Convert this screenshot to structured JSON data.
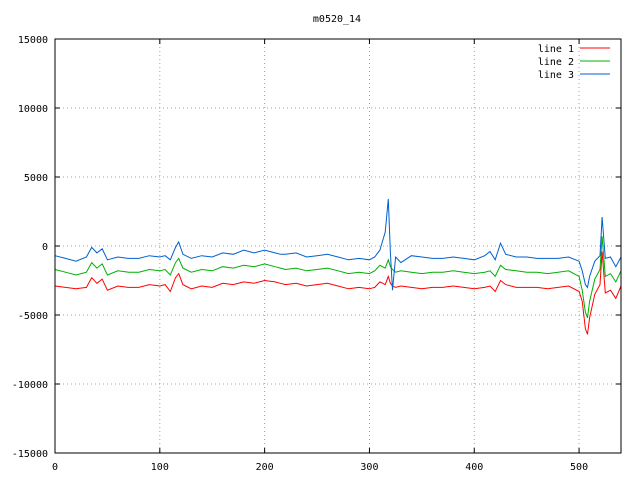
{
  "chart_data": {
    "type": "line",
    "title": "m0520_14",
    "xlabel": "",
    "ylabel": "",
    "xlim": [
      0,
      540
    ],
    "ylim": [
      -15000,
      15000
    ],
    "xticks": [
      "0",
      "100",
      "200",
      "300",
      "400",
      "500"
    ],
    "xtick_values": [
      0,
      100,
      200,
      300,
      400,
      500
    ],
    "yticks": [
      "-15000",
      "-10000",
      "-5000",
      "0",
      "5000",
      "10000",
      "15000"
    ],
    "ytick_values": [
      -15000,
      -10000,
      -5000,
      0,
      5000,
      10000,
      15000
    ],
    "grid": true,
    "legend_position": "top-right",
    "x": [
      0,
      10,
      20,
      30,
      35,
      40,
      45,
      50,
      60,
      70,
      80,
      90,
      100,
      105,
      110,
      115,
      118,
      122,
      130,
      140,
      150,
      160,
      170,
      180,
      190,
      200,
      210,
      215,
      220,
      230,
      240,
      250,
      260,
      270,
      280,
      290,
      300,
      305,
      310,
      315,
      318,
      320,
      322,
      325,
      330,
      340,
      350,
      360,
      370,
      380,
      390,
      400,
      410,
      415,
      420,
      425,
      430,
      440,
      450,
      460,
      470,
      480,
      490,
      500,
      503,
      506,
      508,
      510,
      515,
      520,
      522,
      525,
      530,
      535,
      540
    ],
    "series": [
      {
        "name": "line 1",
        "color": "#ff0000",
        "values": [
          -2900,
          -3000,
          -3100,
          -3000,
          -2300,
          -2700,
          -2400,
          -3200,
          -2900,
          -3000,
          -3000,
          -2800,
          -2900,
          -2800,
          -3300,
          -2300,
          -2000,
          -2800,
          -3100,
          -2900,
          -3000,
          -2700,
          -2800,
          -2600,
          -2700,
          -2500,
          -2600,
          -2700,
          -2800,
          -2700,
          -2900,
          -2800,
          -2700,
          -2900,
          -3100,
          -3000,
          -3100,
          -3000,
          -2600,
          -2800,
          -2200,
          -2700,
          -2900,
          -3000,
          -2900,
          -3000,
          -3100,
          -3000,
          -3000,
          -2900,
          -3000,
          -3100,
          -3000,
          -2900,
          -3300,
          -2500,
          -2800,
          -3000,
          -3000,
          -3000,
          -3100,
          -3000,
          -2900,
          -3300,
          -4000,
          -6000,
          -6400,
          -5200,
          -3500,
          -2800,
          -400,
          -3400,
          -3200,
          -3800,
          -2900
        ]
      },
      {
        "name": "line 2",
        "color": "#00b000",
        "values": [
          -1700,
          -1900,
          -2100,
          -1900,
          -1200,
          -1600,
          -1300,
          -2100,
          -1800,
          -1900,
          -1900,
          -1700,
          -1800,
          -1700,
          -2100,
          -1200,
          -900,
          -1600,
          -1900,
          -1700,
          -1800,
          -1500,
          -1600,
          -1400,
          -1500,
          -1300,
          -1500,
          -1600,
          -1700,
          -1600,
          -1800,
          -1700,
          -1600,
          -1800,
          -2000,
          -1900,
          -2000,
          -1800,
          -1400,
          -1600,
          -1000,
          -1500,
          -1700,
          -1900,
          -1800,
          -1900,
          -2000,
          -1900,
          -1900,
          -1800,
          -1900,
          -2000,
          -1900,
          -1800,
          -2200,
          -1400,
          -1700,
          -1800,
          -1900,
          -1900,
          -2000,
          -1900,
          -1800,
          -2200,
          -3200,
          -4800,
          -5200,
          -4000,
          -2400,
          -1700,
          700,
          -2200,
          -2000,
          -2600,
          -1800
        ]
      },
      {
        "name": "line 3",
        "color": "#0060d0",
        "values": [
          -700,
          -900,
          -1100,
          -800,
          -100,
          -500,
          -200,
          -1000,
          -800,
          -900,
          -900,
          -700,
          -800,
          -700,
          -1000,
          -100,
          300,
          -600,
          -900,
          -700,
          -800,
          -500,
          -600,
          -300,
          -500,
          -300,
          -500,
          -600,
          -600,
          -500,
          -800,
          -700,
          -600,
          -800,
          -1000,
          -900,
          -1000,
          -800,
          -300,
          1000,
          3400,
          -500,
          -3200,
          -800,
          -1200,
          -700,
          -800,
          -900,
          -900,
          -800,
          -900,
          -1000,
          -700,
          -400,
          -1000,
          200,
          -600,
          -800,
          -800,
          -900,
          -900,
          -900,
          -800,
          -1100,
          -1800,
          -2800,
          -3000,
          -2200,
          -1100,
          -700,
          2100,
          -900,
          -800,
          -1500,
          -800
        ]
      }
    ]
  }
}
